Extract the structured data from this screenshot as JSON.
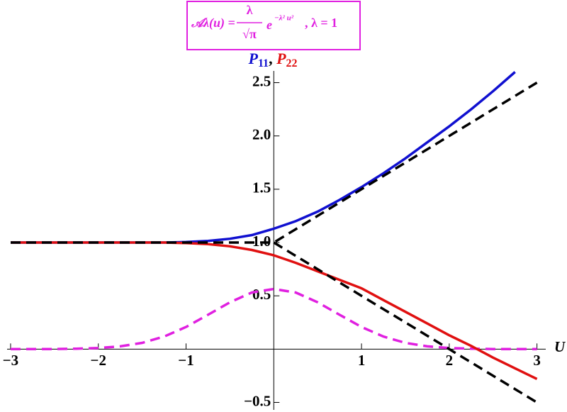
{
  "chart_data": {
    "type": "line",
    "formula": {
      "lhs": "𝒜λ(u) =",
      "numerator": "λ",
      "denominator": "√π",
      "base": "e",
      "exponent": "−λ² u²",
      "tail": ", λ = 1"
    },
    "x_label": "U",
    "x": [
      -3,
      -2.75,
      -2.5,
      -2.25,
      -2,
      -1.75,
      -1.5,
      -1.25,
      -1,
      -0.75,
      -0.5,
      -0.25,
      0,
      0.25,
      0.5,
      0.75,
      1,
      1.25,
      1.5,
      1.75,
      2,
      2.25,
      2.5,
      2.75,
      3
    ],
    "series": [
      {
        "color": "#e020e0",
        "dash": true,
        "values": [
          0,
          0.0003,
          0.001,
          0.004,
          0.01,
          0.026,
          0.059,
          0.118,
          0.208,
          0.322,
          0.439,
          0.531,
          0.564,
          0.531,
          0.439,
          0.322,
          0.208,
          0.118,
          0.059,
          0.026,
          0.01,
          0.004,
          0.001,
          0.0003,
          0
        ]
      },
      {
        "name": "P",
        "name_subscript": "11",
        "color": "#1010d0",
        "dash": false,
        "values": [
          1,
          1,
          1,
          1,
          1,
          1,
          1,
          1,
          1.005,
          1.015,
          1.035,
          1.07,
          1.13,
          1.2,
          1.29,
          1.4,
          1.52,
          1.65,
          1.79,
          1.94,
          2.09,
          2.25,
          2.42,
          2.6,
          null
        ]
      },
      {
        "name": "P",
        "name_subscript": "22",
        "color": "#e01010",
        "dash": false,
        "values": [
          1,
          1,
          1,
          1,
          1,
          1,
          1,
          1,
          0.995,
          0.985,
          0.965,
          0.93,
          0.88,
          0.81,
          0.73,
          0.65,
          0.57,
          0.46,
          0.35,
          0.24,
          0.13,
          0.03,
          -0.08,
          -0.18,
          -0.28
        ]
      },
      {
        "color": "#000000",
        "dash": true,
        "values": [
          1,
          1,
          1,
          1,
          1,
          1,
          1,
          1,
          1,
          1,
          1,
          1,
          1,
          1.125,
          1.25,
          1.375,
          1.5,
          1.625,
          1.75,
          1.875,
          2,
          2.125,
          2.25,
          2.375,
          2.5
        ]
      },
      {
        "color": "#000000",
        "dash": true,
        "values": [
          null,
          null,
          null,
          null,
          null,
          null,
          null,
          null,
          null,
          null,
          null,
          null,
          1,
          0.875,
          0.75,
          0.625,
          0.5,
          0.375,
          0.25,
          0.125,
          0,
          -0.125,
          -0.25,
          -0.375,
          -0.5
        ]
      }
    ],
    "xlim": [
      -3.04,
      3.1
    ],
    "ylim": [
      -0.57,
      2.61
    ],
    "xticks": [
      {
        "value": -3,
        "label": "−3"
      },
      {
        "value": -2,
        "label": "−2"
      },
      {
        "value": -1,
        "label": "−1"
      },
      1,
      2,
      3
    ],
    "yticks": [
      {
        "value": -0.5,
        "label": "−0.5"
      },
      0.5,
      {
        "value": 1,
        "label": "1.0"
      },
      1.5,
      {
        "value": 2,
        "label": "2.0"
      },
      2.5
    ]
  }
}
